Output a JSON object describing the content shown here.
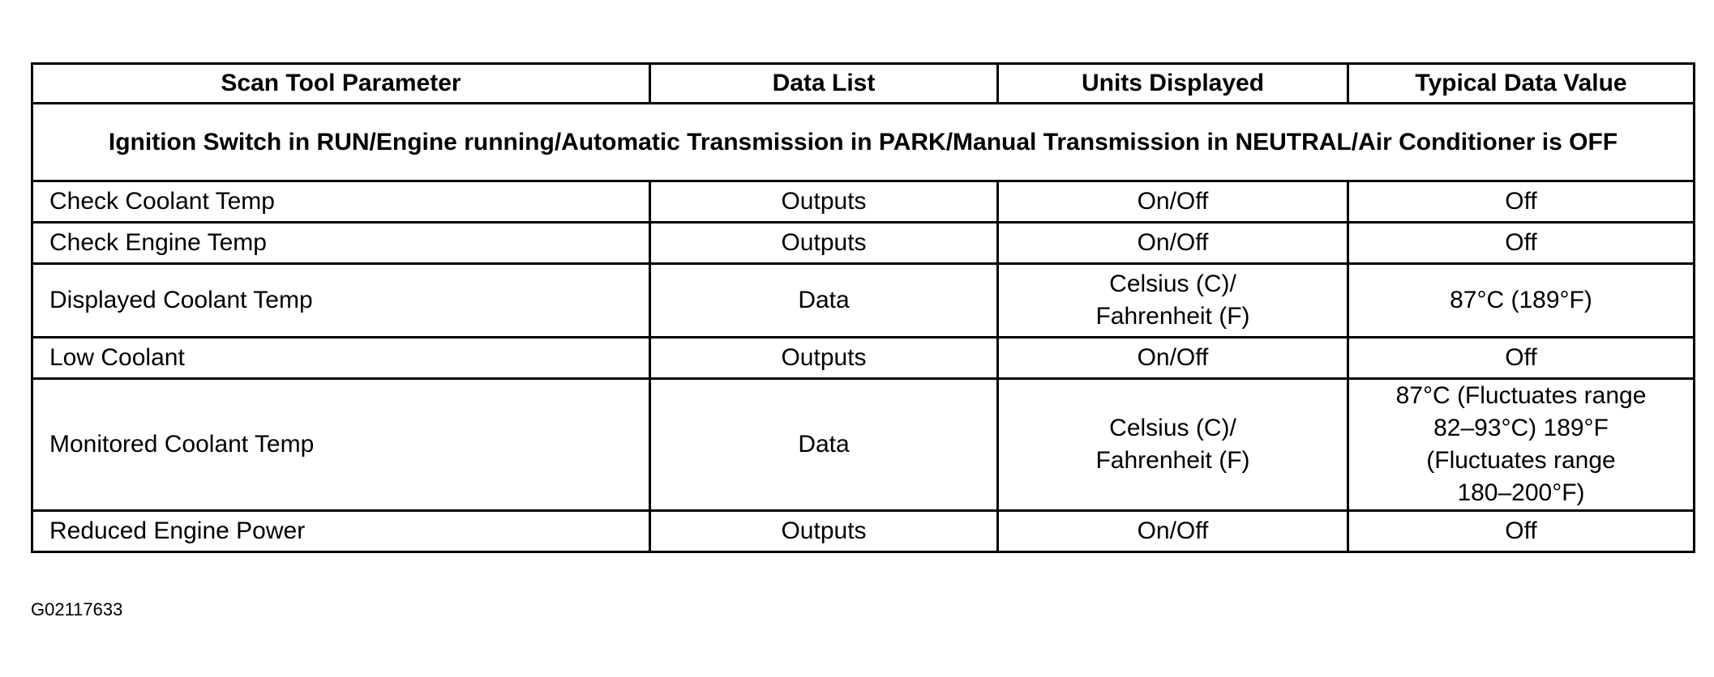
{
  "table": {
    "headers": [
      "Scan Tool Parameter",
      "Data List",
      "Units Displayed",
      "Typical Data Value"
    ],
    "section": "Ignition Switch in RUN/Engine running/Automatic Transmission in PARK/Manual Transmission in NEUTRAL/Air Conditioner is OFF",
    "rows": [
      {
        "parameter": "Check Coolant Temp",
        "data_list": "Outputs",
        "units": "On/Off",
        "typical": "Off"
      },
      {
        "parameter": "Check Engine Temp",
        "data_list": "Outputs",
        "units": "On/Off",
        "typical": "Off"
      },
      {
        "parameter": "Displayed Coolant Temp",
        "data_list": "Data",
        "units": "Celsius (C)/\nFahrenheit (F)",
        "typical": "87°C (189°F)"
      },
      {
        "parameter": "Low Coolant",
        "data_list": "Outputs",
        "units": "On/Off",
        "typical": "Off"
      },
      {
        "parameter": "Monitored Coolant Temp",
        "data_list": "Data",
        "units": "Celsius (C)/\nFahrenheit (F)",
        "typical": "87°C (Fluctuates range\n82–93°C) 189°F\n(Fluctuates range\n180–200°F)"
      },
      {
        "parameter": "Reduced Engine Power",
        "data_list": "Outputs",
        "units": "On/Off",
        "typical": "Off"
      }
    ]
  },
  "figure_id": "G02117633"
}
